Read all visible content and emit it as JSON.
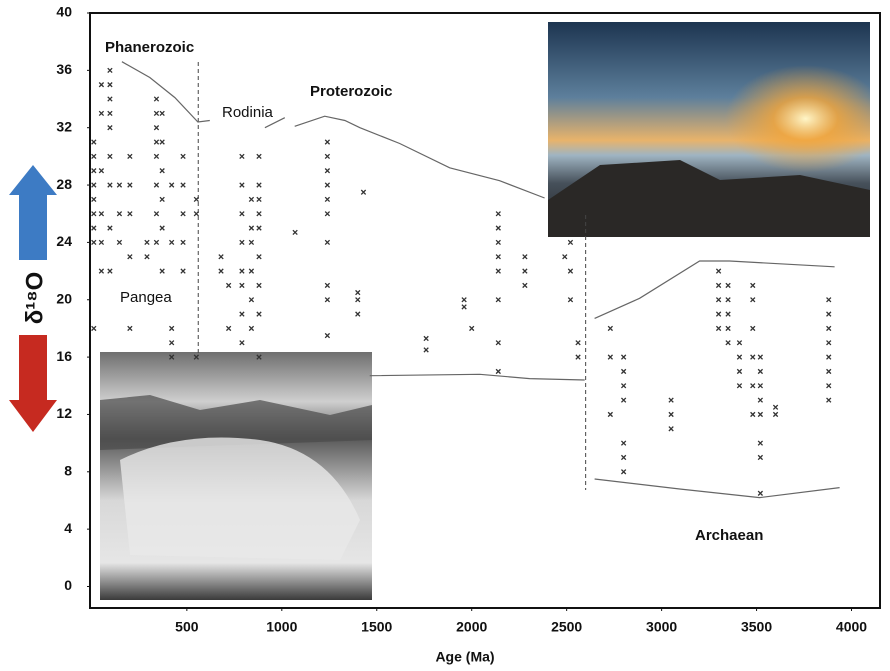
{
  "chart_data": {
    "type": "scatter",
    "xlabel": "Age (Ma)",
    "ylabel": "δ¹⁸O",
    "xlim": [
      -10,
      4150
    ],
    "ylim": [
      -1.5,
      40
    ],
    "xticks": [
      500,
      1000,
      1500,
      2000,
      2500,
      3000,
      3500,
      4000
    ],
    "yticks": [
      0,
      4,
      8,
      12,
      16,
      20,
      24,
      28,
      32,
      36,
      40
    ],
    "annotations": [
      "Phanerozoic",
      "Rodinia",
      "Proterozoic",
      "Pangea",
      "Archaean"
    ],
    "boundaries": [
      560,
      2600
    ],
    "series": [
      {
        "color": "#333333",
        "x": [
          10,
          10,
          10,
          10,
          10,
          10,
          10,
          10,
          10,
          50,
          50,
          50,
          50,
          50,
          50,
          95,
          95,
          95,
          95,
          95,
          95,
          95,
          95,
          95,
          145,
          145,
          145,
          200,
          200,
          200,
          200,
          200,
          290,
          290,
          340,
          340,
          340,
          340,
          340,
          340,
          340,
          340,
          370,
          370,
          370,
          370,
          370,
          370,
          420,
          420,
          420,
          420,
          420,
          480,
          480,
          480,
          480,
          480,
          550,
          550,
          550,
          680,
          680,
          720,
          720,
          790,
          790,
          790,
          790,
          790,
          790,
          790,
          790,
          840,
          840,
          840,
          840,
          840,
          840,
          880,
          880,
          880,
          880,
          880,
          880,
          880,
          880,
          880,
          1070,
          1240,
          1240,
          1240,
          1240,
          1240,
          1240,
          1240,
          1240,
          1240,
          1240,
          1400,
          1400,
          1400,
          1430,
          1760,
          1760,
          1960,
          1960,
          2000,
          2140,
          2140,
          2140,
          2140,
          2140,
          2140,
          2140,
          2140,
          2280,
          2280,
          2280,
          2490,
          2520,
          2520,
          2520,
          2560,
          2560,
          2730,
          2730,
          2730,
          2800,
          2800,
          2800,
          2800,
          2800,
          2800,
          2800,
          3050,
          3050,
          3050,
          3300,
          3300,
          3300,
          3300,
          3300,
          3350,
          3350,
          3350,
          3350,
          3350,
          3410,
          3410,
          3410,
          3410,
          3480,
          3480,
          3480,
          3480,
          3480,
          3480,
          3520,
          3520,
          3520,
          3520,
          3520,
          3520,
          3520,
          3520,
          3600,
          3600,
          3880,
          3880,
          3880,
          3880,
          3880,
          3880,
          3880,
          3880
        ],
        "y": [
          18,
          24,
          25,
          26,
          27,
          28,
          29,
          30,
          31,
          22,
          24,
          26,
          29,
          33,
          35,
          22,
          25,
          28,
          30,
          32,
          33,
          34,
          35,
          36,
          24,
          26,
          28,
          18,
          23,
          26,
          28,
          30,
          23,
          24,
          24,
          26,
          28,
          30,
          31,
          32,
          33,
          34,
          22,
          25,
          27,
          29,
          31,
          33,
          16,
          17,
          18,
          24,
          28,
          22,
          24,
          26,
          28,
          30,
          16,
          26,
          27,
          22,
          23,
          18,
          21,
          17,
          19,
          21,
          22,
          24,
          26,
          28,
          30,
          18,
          20,
          22,
          24,
          25,
          27,
          16,
          19,
          21,
          23,
          25,
          26,
          27,
          28,
          30,
          24.7,
          17.5,
          20,
          21,
          24,
          26,
          27,
          28,
          29,
          30,
          31,
          19,
          20,
          20.5,
          27.5,
          16.5,
          17.3,
          19.5,
          20,
          18,
          15,
          17,
          20,
          22,
          23,
          24,
          25,
          26,
          21,
          22,
          23,
          23,
          20,
          22,
          24,
          16,
          17,
          12,
          16,
          18,
          8,
          9,
          10,
          13,
          14,
          15,
          16,
          11,
          12,
          13,
          18,
          19,
          20,
          21,
          22,
          17,
          18,
          19,
          20,
          21,
          14,
          15,
          16,
          17,
          12,
          14,
          16,
          18,
          20,
          21,
          6.5,
          9,
          10,
          12,
          13,
          14,
          15,
          16,
          12,
          12.5,
          13,
          14,
          15,
          16,
          17,
          18,
          19,
          20
        ]
      }
    ],
    "lines": [
      {
        "x": [
          158,
          305,
          437,
          558,
          621,
          null,
          911,
          1016,
          null,
          1068,
          1226,
          1332,
          1411,
          1621,
          1884,
          2147,
          2384
        ],
        "y": [
          36.6,
          35.5,
          34.1,
          32.4,
          32.5,
          null,
          32.0,
          32.7,
          null,
          32.1,
          32.8,
          32.5,
          32.0,
          30.9,
          29.2,
          28.3,
          27.1
        ]
      },
      {
        "x": [
          1463,
          2042,
          2305,
          2595
        ],
        "y": [
          14.7,
          14.8,
          14.5,
          14.4
        ]
      },
      {
        "x": [
          2647,
          2884,
          3200,
          3358,
          3911
        ],
        "y": [
          18.7,
          20.1,
          22.7,
          22.7,
          22.3
        ]
      },
      {
        "x": [
          2647,
          3095,
          3516,
          3937
        ],
        "y": [
          7.5,
          6.8,
          6.2,
          6.9
        ]
      }
    ]
  }
}
